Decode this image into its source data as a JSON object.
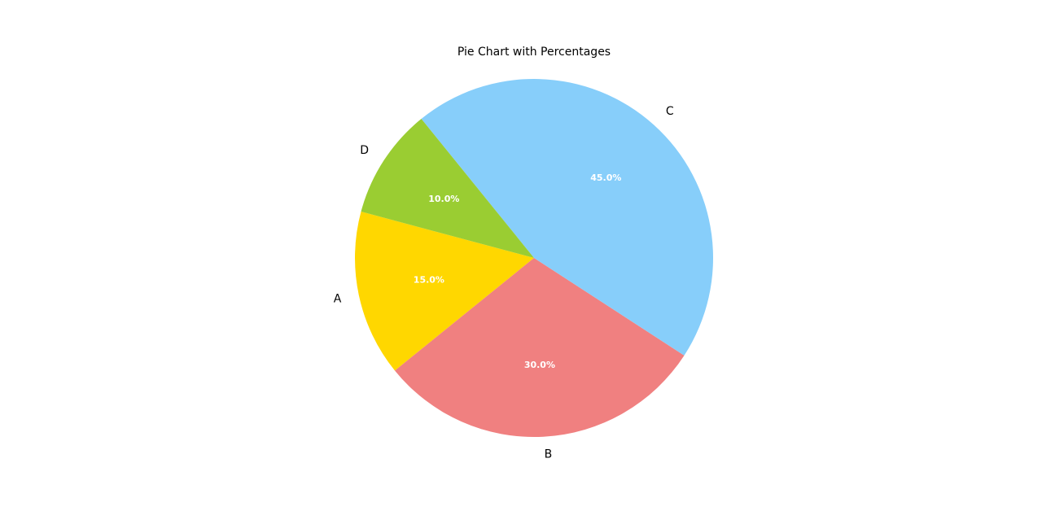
{
  "chart_data": {
    "type": "pie",
    "title": "Pie Chart with Percentages",
    "labels": [
      "A",
      "B",
      "C",
      "D"
    ],
    "values": [
      15,
      30,
      45,
      10
    ],
    "percent_labels": [
      "15.0%",
      "30.0%",
      "45.0%",
      "10.0%"
    ],
    "colors": [
      "#ffd700",
      "#f08080",
      "#87cefa",
      "#9acd32"
    ],
    "start_angle_deg": 165,
    "direction": "counterclockwise"
  }
}
